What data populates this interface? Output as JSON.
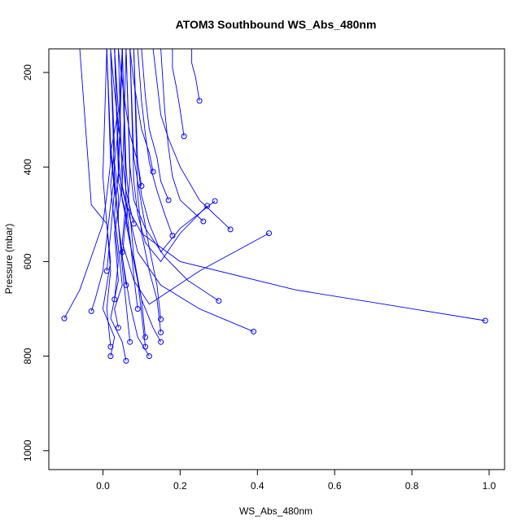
{
  "chart_data": {
    "type": "line",
    "title": "ATOM3 Southbound WS_Abs_480nm",
    "xlabel": "WS_Abs_480nm",
    "ylabel": "Pressure (mbar)",
    "xlim": [
      -0.14,
      1.04
    ],
    "ylim": [
      1040,
      150
    ],
    "y_reversed": true,
    "x_ticks": [
      "0.0",
      "0.2",
      "0.4",
      "0.6",
      "0.8",
      "1.0"
    ],
    "y_ticks": [
      "200",
      "400",
      "600",
      "800",
      "1000"
    ],
    "grid": false,
    "legend": "none",
    "marker": "open-circle",
    "line_color": "#0000ff",
    "series": [
      {
        "x": [
          0.02,
          0.03,
          0.0,
          0.02,
          0.01,
          -0.03,
          -0.06
        ],
        "y": [
          800,
          760,
          700,
          600,
          520,
          480,
          150
        ]
      },
      {
        "x": [
          0.06,
          0.05,
          0.02,
          0.04,
          0.03,
          0.05,
          0.04
        ],
        "y": [
          810,
          770,
          720,
          640,
          540,
          440,
          150
        ]
      },
      {
        "x": [
          0.12,
          0.09,
          0.07,
          0.05,
          0.06,
          0.04,
          0.05
        ],
        "y": [
          800,
          760,
          690,
          590,
          500,
          430,
          150
        ]
      },
      {
        "x": [
          0.15,
          0.13,
          0.1,
          0.08,
          0.06,
          0.07,
          0.06
        ],
        "y": [
          770,
          740,
          680,
          600,
          520,
          420,
          150
        ]
      },
      {
        "x": [
          0.04,
          0.03,
          0.05,
          0.04,
          0.03,
          0.04,
          0.03
        ],
        "y": [
          740,
          700,
          650,
          570,
          500,
          410,
          150
        ]
      },
      {
        "x": [
          -0.03,
          -0.02,
          0.0,
          0.01,
          0.02,
          0.03,
          0.02
        ],
        "y": [
          705,
          680,
          620,
          550,
          480,
          420,
          150
        ]
      },
      {
        "x": [
          -0.1,
          -0.06,
          -0.03,
          0.0,
          0.01,
          0.02,
          0.01
        ],
        "y": [
          720,
          660,
          590,
          520,
          460,
          390,
          150
        ]
      },
      {
        "x": [
          0.99,
          0.5,
          0.2,
          0.1,
          0.06,
          0.04,
          0.05
        ],
        "y": [
          725,
          660,
          600,
          540,
          480,
          410,
          150
        ]
      },
      {
        "x": [
          0.43,
          0.25,
          0.12,
          0.08,
          0.05,
          0.06,
          0.05
        ],
        "y": [
          540,
          620,
          690,
          640,
          560,
          470,
          150
        ]
      },
      {
        "x": [
          0.39,
          0.25,
          0.15,
          0.09,
          0.07,
          0.05,
          0.06
        ],
        "y": [
          748,
          700,
          650,
          580,
          510,
          440,
          150
        ]
      },
      {
        "x": [
          0.3,
          0.22,
          0.16,
          0.11,
          0.08,
          0.07,
          0.06
        ],
        "y": [
          683,
          640,
          590,
          530,
          470,
          400,
          150
        ]
      },
      {
        "x": [
          0.29,
          0.2,
          0.15,
          0.12,
          0.1,
          0.09,
          0.08
        ],
        "y": [
          472,
          530,
          580,
          520,
          460,
          390,
          150
        ]
      },
      {
        "x": [
          0.27,
          0.2,
          0.15,
          0.11,
          0.09,
          0.08,
          0.07
        ],
        "y": [
          482,
          540,
          600,
          560,
          500,
          430,
          150
        ]
      },
      {
        "x": [
          0.26,
          0.2,
          0.18,
          0.17,
          0.16,
          0.15
        ],
        "y": [
          515,
          470,
          420,
          360,
          280,
          150
        ]
      },
      {
        "x": [
          0.18,
          0.16,
          0.14,
          0.12,
          0.11,
          0.1,
          0.09
        ],
        "y": [
          545,
          500,
          450,
          390,
          330,
          260,
          150
        ]
      },
      {
        "x": [
          0.13,
          0.12,
          0.1,
          0.09,
          0.08,
          0.07
        ],
        "y": [
          410,
          370,
          320,
          270,
          220,
          150
        ]
      },
      {
        "x": [
          0.17,
          0.15,
          0.14,
          0.12,
          0.11,
          0.1
        ],
        "y": [
          470,
          430,
          380,
          320,
          250,
          150
        ]
      },
      {
        "x": [
          0.1,
          0.09,
          0.07,
          0.06,
          0.05,
          0.04
        ],
        "y": [
          440,
          390,
          330,
          280,
          220,
          150
        ]
      },
      {
        "x": [
          0.01,
          0.02,
          0.03,
          0.02,
          0.04,
          0.03
        ],
        "y": [
          620,
          540,
          450,
          370,
          280,
          150
        ]
      },
      {
        "x": [
          0.08,
          0.06,
          0.05,
          0.04,
          0.03,
          0.02
        ],
        "y": [
          520,
          450,
          380,
          310,
          240,
          150
        ]
      },
      {
        "x": [
          0.21,
          0.2,
          0.19,
          0.18,
          0.18
        ],
        "y": [
          335,
          280,
          230,
          190,
          150
        ]
      },
      {
        "x": [
          0.25,
          0.24,
          0.23,
          0.23
        ],
        "y": [
          260,
          210,
          180,
          150
        ]
      },
      {
        "x": [
          0.33,
          0.25,
          0.2,
          0.17,
          0.15,
          0.14,
          0.13
        ],
        "y": [
          532,
          470,
          400,
          340,
          290,
          220,
          150
        ]
      },
      {
        "x": [
          0.11,
          0.1,
          0.08,
          0.07,
          0.06,
          0.05
        ],
        "y": [
          760,
          680,
          590,
          500,
          400,
          150
        ]
      },
      {
        "x": [
          0.15,
          0.14,
          0.12,
          0.1,
          0.08,
          0.07
        ],
        "y": [
          722,
          650,
          570,
          480,
          380,
          150
        ]
      },
      {
        "x": [
          0.09,
          0.08,
          0.07,
          0.05,
          0.04,
          0.03
        ],
        "y": [
          700,
          630,
          550,
          470,
          370,
          150
        ]
      },
      {
        "x": [
          0.06,
          0.05,
          0.04,
          0.03,
          0.02,
          0.01
        ],
        "y": [
          650,
          590,
          520,
          440,
          350,
          150
        ]
      },
      {
        "x": [
          0.02,
          0.01,
          0.02,
          0.01,
          0.0,
          0.01
        ],
        "y": [
          780,
          700,
          620,
          520,
          420,
          150
        ]
      },
      {
        "x": [
          0.07,
          0.06,
          0.05,
          0.04,
          0.03,
          0.02
        ],
        "y": [
          770,
          690,
          610,
          520,
          420,
          150
        ]
      },
      {
        "x": [
          0.11,
          0.1,
          0.09,
          0.07,
          0.06,
          0.05
        ],
        "y": [
          780,
          710,
          640,
          560,
          470,
          150
        ]
      },
      {
        "x": [
          0.15,
          0.14,
          0.12,
          0.1,
          0.09,
          0.08
        ],
        "y": [
          750,
          680,
          620,
          540,
          460,
          150
        ]
      },
      {
        "x": [
          0.05,
          0.04,
          0.04,
          0.03,
          0.04,
          0.05
        ],
        "y": [
          580,
          520,
          460,
          390,
          320,
          150
        ]
      },
      {
        "x": [
          0.03,
          0.04,
          0.03,
          0.02,
          0.03,
          0.02
        ],
        "y": [
          680,
          600,
          520,
          440,
          360,
          150
        ]
      }
    ]
  }
}
